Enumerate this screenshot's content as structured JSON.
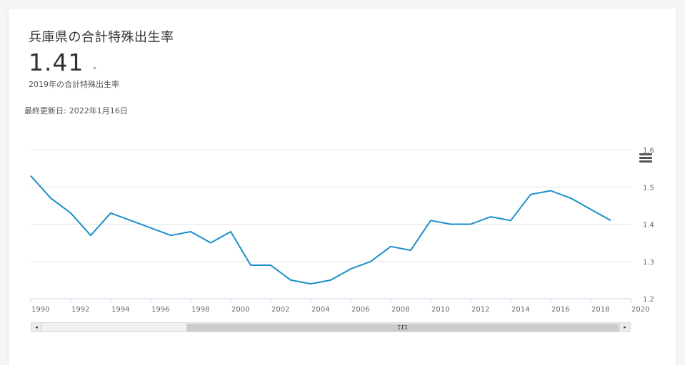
{
  "header": {
    "title": "兵庫県の合計特殊出生率",
    "value": "1.41",
    "change": "-",
    "subtitle": "2019年の合計特殊出生率"
  },
  "updated": {
    "label": "最終更新日:",
    "date": "2022年1月16日"
  },
  "scrollbar": {
    "grip": "III",
    "left_arrow": "◂",
    "right_arrow": "▸"
  },
  "icons": {
    "menu": "hamburger-menu-icon"
  },
  "colors": {
    "line": "#1a8fc8",
    "grid": "#e6e6e6"
  },
  "chart_data": {
    "type": "line",
    "title": "",
    "xlabel": "",
    "ylabel": "",
    "x": [
      1990,
      1991,
      1992,
      1993,
      1994,
      1995,
      1996,
      1997,
      1998,
      1999,
      2000,
      2001,
      2002,
      2003,
      2004,
      2005,
      2006,
      2007,
      2008,
      2009,
      2010,
      2011,
      2012,
      2013,
      2014,
      2015,
      2016,
      2017,
      2018,
      2019
    ],
    "series": [
      {
        "values": [
          1.53,
          1.47,
          1.43,
          1.37,
          1.43,
          1.41,
          1.39,
          1.37,
          1.38,
          1.35,
          1.38,
          1.29,
          1.29,
          1.25,
          1.24,
          1.25,
          1.28,
          1.3,
          1.34,
          1.33,
          1.41,
          1.4,
          1.4,
          1.42,
          1.41,
          1.48,
          1.49,
          1.47,
          1.44,
          1.41
        ]
      }
    ],
    "xlim": [
      1990,
      2020
    ],
    "ylim": [
      1.2,
      1.6
    ],
    "x_ticks": [
      "1990",
      "1992",
      "1994",
      "1996",
      "1998",
      "2000",
      "2002",
      "2004",
      "2006",
      "2008",
      "2010",
      "2012",
      "2014",
      "2016",
      "2018",
      "2020"
    ],
    "y_ticks": [
      "1.2",
      "1.3",
      "1.4",
      "1.5",
      "1.6"
    ],
    "y_axis_side": "right",
    "grid": true,
    "legend": "none"
  }
}
